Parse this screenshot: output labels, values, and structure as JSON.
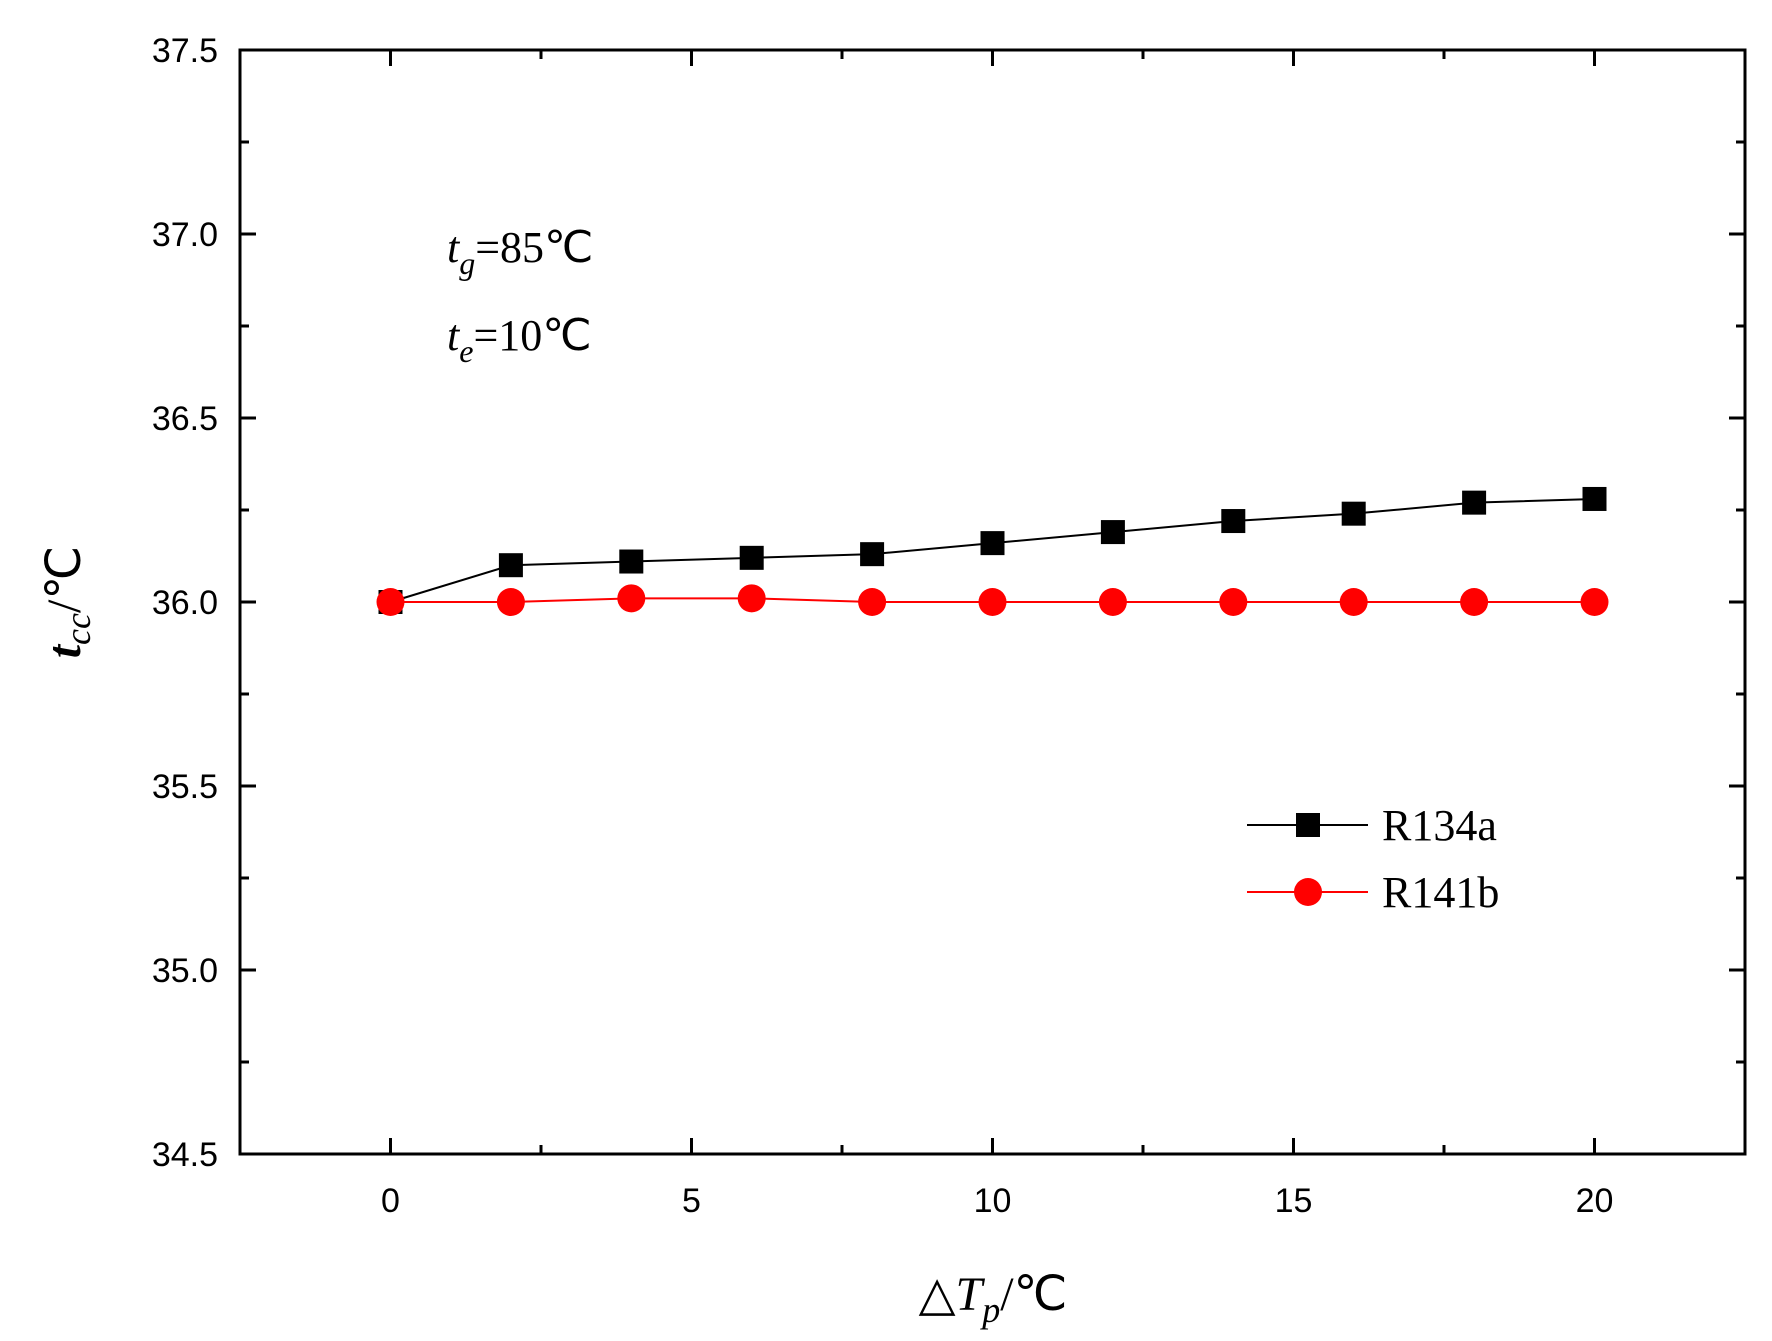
{
  "chart_data": {
    "type": "line",
    "x": [
      0,
      2,
      4,
      6,
      8,
      10,
      12,
      14,
      16,
      18,
      20
    ],
    "series": [
      {
        "name": "R134a",
        "color": "#000000",
        "marker": "square",
        "values": [
          36.0,
          36.1,
          36.11,
          36.12,
          36.13,
          36.16,
          36.19,
          36.22,
          36.24,
          36.27,
          36.28
        ]
      },
      {
        "name": "R141b",
        "color": "#ff0000",
        "marker": "circle",
        "values": [
          36.0,
          36.0,
          36.01,
          36.01,
          36.0,
          36.0,
          36.0,
          36.0,
          36.0,
          36.0,
          36.0
        ]
      }
    ],
    "xlim": [
      -2.5,
      22.5
    ],
    "ylim": [
      34.5,
      37.5
    ],
    "xticks": [
      0,
      5,
      10,
      15,
      20
    ],
    "xtick_labels": [
      "0",
      "5",
      "10",
      "15",
      "20"
    ],
    "yticks": [
      34.5,
      35.0,
      35.5,
      36.0,
      36.5,
      37.0,
      37.5
    ],
    "ytick_labels": [
      "34.5",
      "35.0",
      "35.5",
      "36.0",
      "36.5",
      "37.0",
      "37.5"
    ],
    "xlabel": {
      "prefix": "△",
      "var": "T",
      "sub": "p",
      "unit": "/℃"
    },
    "ylabel": {
      "var": "t",
      "sub": "cc",
      "unit": "/℃"
    },
    "annotations": [
      {
        "var": "t",
        "sub": "g",
        "text": "=85℃"
      },
      {
        "var": "t",
        "sub": "e",
        "text": "=10℃"
      }
    ],
    "legend_position": "lower-right",
    "grid": false
  }
}
